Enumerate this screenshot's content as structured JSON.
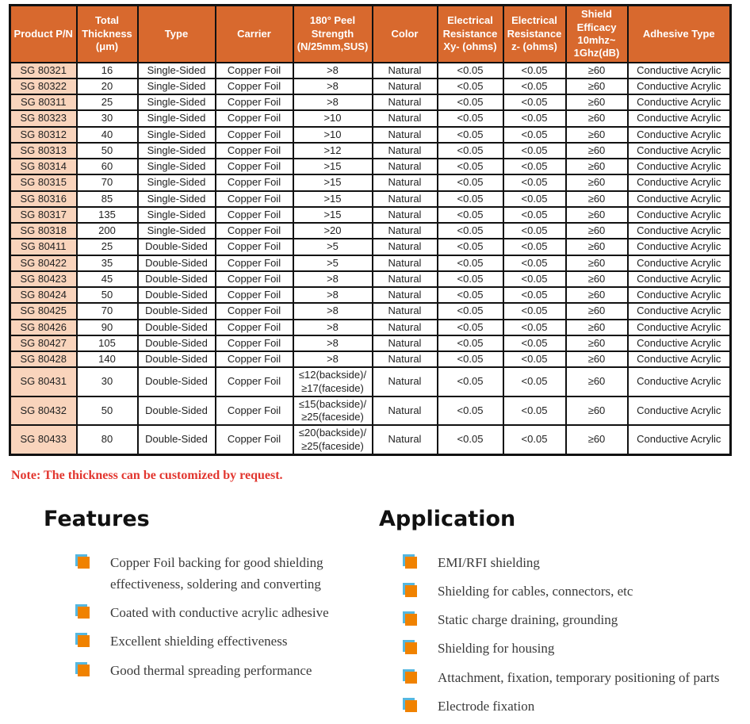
{
  "table": {
    "headers": [
      "Product P/N",
      "Total Thickness (μm)",
      "Type",
      "Carrier",
      "180° Peel Strength (N/25mm,SUS)",
      "Color",
      "Electrical Resistance Xy- (ohms)",
      "Electrical Resistance z- (ohms)",
      "Shield Efficacy 10mhz~ 1Ghz(dB)",
      "Adhesive Type"
    ],
    "rows": [
      [
        "SG 80321",
        "16",
        "Single-Sided",
        "Copper Foil",
        ">8",
        "Natural",
        "<0.05",
        "<0.05",
        "≥60",
        "Conductive Acrylic"
      ],
      [
        "SG 80322",
        "20",
        "Single-Sided",
        "Copper Foil",
        ">8",
        "Natural",
        "<0.05",
        "<0.05",
        "≥60",
        "Conductive Acrylic"
      ],
      [
        "SG 80311",
        "25",
        "Single-Sided",
        "Copper Foil",
        ">8",
        "Natural",
        "<0.05",
        "<0.05",
        "≥60",
        "Conductive Acrylic"
      ],
      [
        "SG 80323",
        "30",
        "Single-Sided",
        "Copper Foil",
        ">10",
        "Natural",
        "<0.05",
        "<0.05",
        "≥60",
        "Conductive Acrylic"
      ],
      [
        "SG 80312",
        "40",
        "Single-Sided",
        "Copper Foil",
        ">10",
        "Natural",
        "<0.05",
        "<0.05",
        "≥60",
        "Conductive Acrylic"
      ],
      [
        "SG 80313",
        "50",
        "Single-Sided",
        "Copper Foil",
        ">12",
        "Natural",
        "<0.05",
        "<0.05",
        "≥60",
        "Conductive Acrylic"
      ],
      [
        "SG 80314",
        "60",
        "Single-Sided",
        "Copper Foil",
        ">15",
        "Natural",
        "<0.05",
        "<0.05",
        "≥60",
        "Conductive Acrylic"
      ],
      [
        "SG 80315",
        "70",
        "Single-Sided",
        "Copper Foil",
        ">15",
        "Natural",
        "<0.05",
        "<0.05",
        "≥60",
        "Conductive Acrylic"
      ],
      [
        "SG 80316",
        "85",
        "Single-Sided",
        "Copper Foil",
        ">15",
        "Natural",
        "<0.05",
        "<0.05",
        "≥60",
        "Conductive Acrylic"
      ],
      [
        "SG 80317",
        "135",
        "Single-Sided",
        "Copper Foil",
        ">15",
        "Natural",
        "<0.05",
        "<0.05",
        "≥60",
        "Conductive Acrylic"
      ],
      [
        "SG 80318",
        "200",
        "Single-Sided",
        "Copper Foil",
        ">20",
        "Natural",
        "<0.05",
        "<0.05",
        "≥60",
        "Conductive Acrylic"
      ],
      [
        "SG 80411",
        "25",
        "Double-Sided",
        "Copper Foil",
        ">5",
        "Natural",
        "<0.05",
        "<0.05",
        "≥60",
        "Conductive Acrylic"
      ],
      [
        "SG 80422",
        "35",
        "Double-Sided",
        "Copper Foil",
        ">5",
        "Natural",
        "<0.05",
        "<0.05",
        "≥60",
        "Conductive Acrylic"
      ],
      [
        "SG 80423",
        "45",
        "Double-Sided",
        "Copper Foil",
        ">8",
        "Natural",
        "<0.05",
        "<0.05",
        "≥60",
        "Conductive Acrylic"
      ],
      [
        "SG 80424",
        "50",
        "Double-Sided",
        "Copper Foil",
        ">8",
        "Natural",
        "<0.05",
        "<0.05",
        "≥60",
        "Conductive Acrylic"
      ],
      [
        "SG 80425",
        "70",
        "Double-Sided",
        "Copper Foil",
        ">8",
        "Natural",
        "<0.05",
        "<0.05",
        "≥60",
        "Conductive Acrylic"
      ],
      [
        "SG 80426",
        "90",
        "Double-Sided",
        "Copper Foil",
        ">8",
        "Natural",
        "<0.05",
        "<0.05",
        "≥60",
        "Conductive Acrylic"
      ],
      [
        "SG 80427",
        "105",
        "Double-Sided",
        "Copper Foil",
        ">8",
        "Natural",
        "<0.05",
        "<0.05",
        "≥60",
        "Conductive Acrylic"
      ],
      [
        "SG 80428",
        "140",
        "Double-Sided",
        "Copper Foil",
        ">8",
        "Natural",
        "<0.05",
        "<0.05",
        "≥60",
        "Conductive Acrylic"
      ],
      [
        "SG 80431",
        "30",
        "Double-Sided",
        "Copper Foil",
        "≤12(backside)/\n≥17(faceside)",
        "Natural",
        "<0.05",
        "<0.05",
        "≥60",
        "Conductive Acrylic"
      ],
      [
        "SG 80432",
        "50",
        "Double-Sided",
        "Copper Foil",
        "≤15(backside)/\n≥25(faceside)",
        "Natural",
        "<0.05",
        "<0.05",
        "≥60",
        "Conductive Acrylic"
      ],
      [
        "SG 80433",
        "80",
        "Double-Sided",
        "Copper Foil",
        "≤20(backside)/\n≥25(faceside)",
        "Natural",
        "<0.05",
        "<0.05",
        "≥60",
        "Conductive Acrylic"
      ]
    ]
  },
  "note": "Note: The thickness can be customized by request.",
  "features": {
    "title": "Features",
    "items": [
      "Copper Foil backing for good shielding effectiveness, soldering and converting",
      "Coated with conductive acrylic adhesive",
      "Excellent shielding effectiveness",
      "Good thermal spreading performance"
    ]
  },
  "application": {
    "title": "Application",
    "items": [
      "EMI/RFI shielding",
      "Shielding for cables, connectors, etc",
      "Static charge draining, grounding",
      "Shielding for housing",
      "Attachment, fixation, temporary positioning of parts",
      "Electrode fixation"
    ]
  },
  "colors": {
    "header_bg": "#D8692E",
    "product_col_bg": "#F9D4BC",
    "note_red": "#E2362F",
    "bullet_orange": "#F08200",
    "bullet_blue": "#55B7E0",
    "border_black": "#111111"
  }
}
